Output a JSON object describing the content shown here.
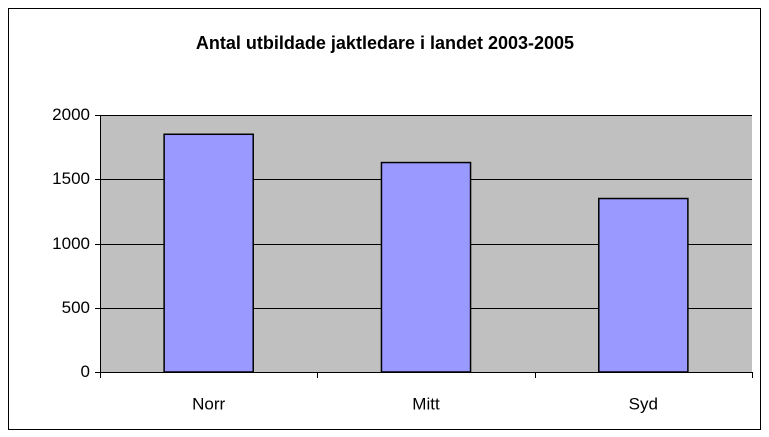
{
  "chart_data": {
    "type": "bar",
    "title": "Antal utbildade jaktledare i landet 2003-2005",
    "categories": [
      "Norr",
      "Mitt",
      "Syd"
    ],
    "values": [
      1850,
      1630,
      1350
    ],
    "color": "#9999ff",
    "ylim": [
      0,
      2000
    ],
    "yticks": [
      0,
      500,
      1000,
      1500,
      2000
    ],
    "grid": true
  }
}
